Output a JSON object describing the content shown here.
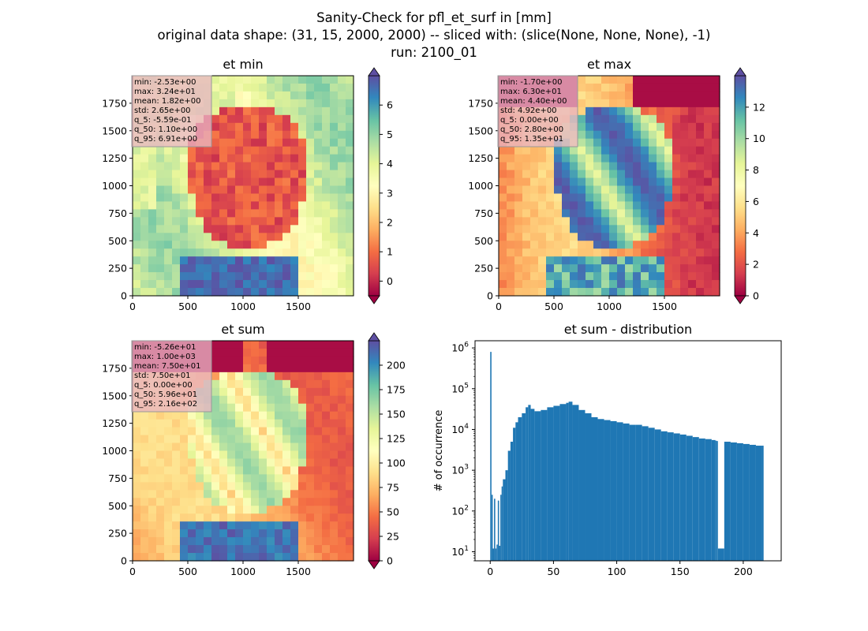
{
  "figure": {
    "suptitle_line1": "Sanity-Check for pfl_et_surf in [mm]",
    "suptitle_line2": "original data shape: (31, 15, 2000, 2000) -- sliced with: (slice(None, None, None), -1)",
    "suptitle_line3": "run: 2100_01"
  },
  "colors": {
    "spectral": [
      "#9e0142",
      "#d53e4f",
      "#f46d43",
      "#fdae61",
      "#fee08b",
      "#ffffbf",
      "#e6f598",
      "#abdda4",
      "#66c2a5",
      "#3288bd",
      "#5e4fa2"
    ],
    "hist_bar": "#1f77b4",
    "stats_box_bg": "#e8b4c4",
    "stats_box_border": "#999999"
  },
  "chart_data": [
    {
      "type": "heatmap",
      "title": "et min",
      "xlabel": "",
      "ylabel": "",
      "xlim": [
        0,
        2000
      ],
      "ylim": [
        0,
        2000
      ],
      "xticks": [
        "0",
        "500",
        "1000",
        "1500"
      ],
      "yticks": [
        "0",
        "250",
        "500",
        "750",
        "1000",
        "1250",
        "1500",
        "1750"
      ],
      "colormap": "Spectral",
      "colorbar_range": [
        -0.5,
        7
      ],
      "colorbar_ticks": [
        "0",
        "1",
        "2",
        "3",
        "4",
        "5",
        "6"
      ],
      "stats": [
        "min: -2.53e+00",
        "max: 3.24e+01",
        "mean: 1.82e+00",
        "std: 2.65e+00",
        "q_5: -5.59e-01",
        "q_50: 1.10e+00",
        "q_95: 6.91e+00"
      ]
    },
    {
      "type": "heatmap",
      "title": "et max",
      "xlabel": "",
      "ylabel": "",
      "xlim": [
        0,
        2000
      ],
      "ylim": [
        0,
        2000
      ],
      "xticks": [
        "0",
        "500",
        "1000",
        "1500"
      ],
      "yticks": [
        "0",
        "250",
        "500",
        "750",
        "1000",
        "1250",
        "1500",
        "1750"
      ],
      "colormap": "Spectral",
      "colorbar_range": [
        0,
        14
      ],
      "colorbar_ticks": [
        "0",
        "2",
        "4",
        "6",
        "8",
        "10",
        "12"
      ],
      "stats": [
        "min: -1.70e+00",
        "max: 6.30e+01",
        "mean: 4.40e+00",
        "std: 4.92e+00",
        "q_5: 0.00e+00",
        "q_50: 2.80e+00",
        "q_95: 1.35e+01"
      ]
    },
    {
      "type": "heatmap",
      "title": "et sum",
      "xlabel": "",
      "ylabel": "",
      "xlim": [
        0,
        2000
      ],
      "ylim": [
        0,
        2000
      ],
      "xticks": [
        "0",
        "500",
        "1000",
        "1500"
      ],
      "yticks": [
        "0",
        "250",
        "500",
        "750",
        "1000",
        "1250",
        "1500",
        "1750"
      ],
      "colormap": "Spectral",
      "colorbar_range": [
        0,
        225
      ],
      "colorbar_ticks": [
        "0",
        "25",
        "50",
        "75",
        "100",
        "125",
        "150",
        "175",
        "200"
      ],
      "stats": [
        "min: -5.26e+01",
        "max: 1.00e+03",
        "mean: 7.50e+01",
        "std: 7.50e+01",
        "q_5: 0.00e+00",
        "q_50: 5.96e+01",
        "q_95: 2.16e+02"
      ]
    },
    {
      "type": "bar",
      "title": "et sum - distribution",
      "xlabel": "",
      "ylabel": "# of occurrence",
      "yscale": "log",
      "xlim": [
        -12,
        230
      ],
      "ylim": [
        6,
        1500000
      ],
      "xticks": [
        "0",
        "50",
        "100",
        "150",
        "200"
      ],
      "yticks": [
        "10^1",
        "10^2",
        "10^3",
        "10^4",
        "10^5",
        "10^6"
      ],
      "grid": false,
      "bin_width": 1.1,
      "x": [
        0,
        1,
        2,
        3,
        4,
        5,
        6,
        7,
        8,
        9,
        10,
        12,
        14,
        16,
        18,
        20,
        22,
        25,
        28,
        30,
        32,
        35,
        40,
        45,
        50,
        55,
        60,
        62,
        65,
        70,
        75,
        80,
        85,
        90,
        95,
        100,
        105,
        110,
        115,
        120,
        125,
        130,
        135,
        140,
        145,
        150,
        155,
        160,
        165,
        170,
        175,
        178,
        179,
        180,
        185,
        190,
        195,
        200,
        205,
        210,
        215
      ],
      "values": [
        800000,
        250,
        12,
        200,
        12,
        15,
        180,
        14,
        250,
        400,
        600,
        1000,
        3000,
        5000,
        11000,
        15000,
        20000,
        25000,
        35000,
        40000,
        32000,
        28000,
        30000,
        35000,
        38000,
        42000,
        45000,
        48000,
        40000,
        30000,
        25000,
        20000,
        18000,
        17000,
        16000,
        15000,
        14000,
        13000,
        13000,
        12000,
        11000,
        10000,
        9000,
        8500,
        8000,
        7500,
        7000,
        6500,
        6000,
        5800,
        5500,
        5300,
        5200,
        12,
        5000,
        4800,
        4600,
        4400,
        4200,
        4000,
        4000
      ]
    }
  ]
}
